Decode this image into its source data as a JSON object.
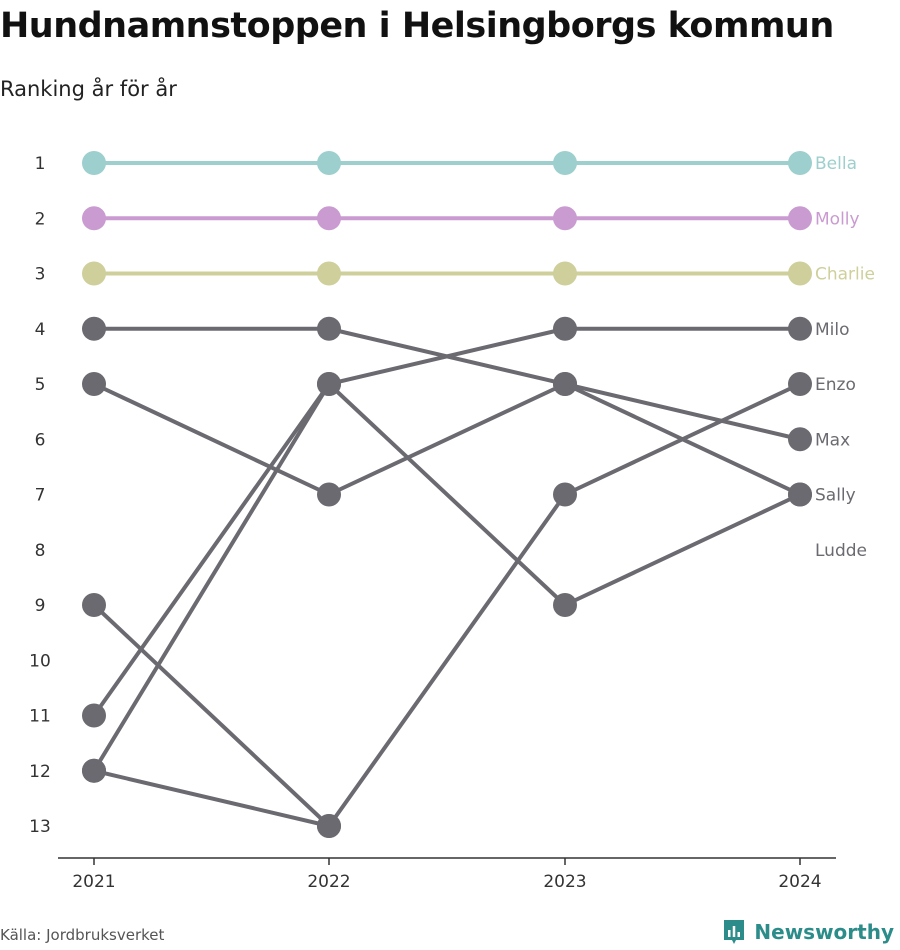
{
  "title": "Hundnamnstoppen i Helsingborgs kommun",
  "subtitle": "Ranking år för år",
  "source": "Källa: Jordbruksverket",
  "brand": {
    "name": "Newsworthy",
    "icon": "bar-chart-badge-icon",
    "color": "#2b8c8a"
  },
  "chart_data": {
    "type": "line",
    "x": [
      "2021",
      "2022",
      "2023",
      "2024"
    ],
    "y_ticks": [
      1,
      2,
      3,
      4,
      5,
      6,
      7,
      8,
      9,
      10,
      11,
      12,
      13
    ],
    "ylim": [
      1,
      13
    ],
    "y_reversed": true,
    "grid": false,
    "series": [
      {
        "name": "Bella",
        "values": [
          1,
          1,
          1,
          1
        ],
        "color": "#9ccfcd",
        "label_color": "#9ccfcd"
      },
      {
        "name": "Molly",
        "values": [
          2,
          2,
          2,
          2
        ],
        "color": "#c99bd0",
        "label_color": "#c99bd0"
      },
      {
        "name": "Charlie",
        "values": [
          3,
          3,
          3,
          3
        ],
        "color": "#cfcf9c",
        "label_color": "#cfcf9c"
      },
      {
        "name": "Milo",
        "values": [
          11,
          5,
          4,
          4
        ],
        "color": "#6b6a70",
        "label_color": "#6b6a70"
      },
      {
        "name": "Enzo",
        "values": [
          12,
          13,
          7,
          5
        ],
        "color": "#6b6a70",
        "label_color": "#6b6a70"
      },
      {
        "name": "Max",
        "values": [
          4,
          4,
          5,
          6
        ],
        "color": "#6b6a70",
        "label_color": "#6b6a70"
      },
      {
        "name": "Sally",
        "values": [
          5,
          7,
          5,
          7
        ],
        "color": "#6b6a70",
        "label_color": "#6b6a70"
      },
      {
        "name": "Ludde",
        "values": [
          9,
          13,
          null,
          null
        ],
        "color": "#6b6a70",
        "label_color": "#6b6a70"
      },
      {
        "name": "",
        "values": [
          12,
          5,
          9,
          7
        ],
        "color": "#6b6a70",
        "label_color": "#6b6a70"
      }
    ],
    "end_labels": [
      {
        "text": "Bella",
        "rank": 1,
        "color": "#9ccfcd"
      },
      {
        "text": "Molly",
        "rank": 2,
        "color": "#c99bd0"
      },
      {
        "text": "Charlie",
        "rank": 3,
        "color": "#cfcf9c"
      },
      {
        "text": "Milo",
        "rank": 4,
        "color": "#6b6a70"
      },
      {
        "text": "Enzo",
        "rank": 5,
        "color": "#6b6a70"
      },
      {
        "text": "Max",
        "rank": 6,
        "color": "#6b6a70"
      },
      {
        "text": "Sally",
        "rank": 7,
        "color": "#6b6a70"
      },
      {
        "text": "Ludde",
        "rank": 8,
        "color": "#6b6a70"
      }
    ]
  }
}
